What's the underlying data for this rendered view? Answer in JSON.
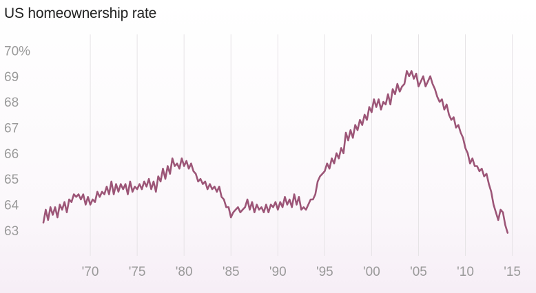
{
  "chart_data": {
    "type": "line",
    "title": "US homeownership rate",
    "xlabel": "",
    "ylabel": "",
    "y_ticks": [
      "70%",
      "69",
      "68",
      "67",
      "66",
      "65",
      "64",
      "63"
    ],
    "y_tick_values": [
      70,
      69,
      68,
      67,
      66,
      65,
      64,
      63
    ],
    "x_ticks": [
      "'70",
      "'75",
      "'80",
      "'85",
      "'90",
      "'95",
      "'00",
      "'05",
      "'10",
      "'15"
    ],
    "x_tick_values": [
      1970,
      1975,
      1980,
      1985,
      1990,
      1995,
      2000,
      2005,
      2010,
      2015
    ],
    "xlim": [
      1965,
      2016.5
    ],
    "ylim": [
      62.7,
      70.2
    ],
    "grid": "vertical",
    "series": [
      {
        "color": "#9c5577",
        "points": [
          [
            1965.0,
            63.3
          ],
          [
            1965.25,
            63.8
          ],
          [
            1965.5,
            63.4
          ],
          [
            1965.75,
            63.9
          ],
          [
            1966.0,
            63.6
          ],
          [
            1966.25,
            63.9
          ],
          [
            1966.5,
            63.5
          ],
          [
            1966.75,
            64.0
          ],
          [
            1967.0,
            63.8
          ],
          [
            1967.25,
            64.1
          ],
          [
            1967.5,
            63.7
          ],
          [
            1967.75,
            64.2
          ],
          [
            1968.0,
            64.1
          ],
          [
            1968.25,
            64.4
          ],
          [
            1968.5,
            64.3
          ],
          [
            1968.75,
            64.4
          ],
          [
            1969.0,
            64.2
          ],
          [
            1969.25,
            64.4
          ],
          [
            1969.5,
            64.0
          ],
          [
            1969.75,
            64.3
          ],
          [
            1970.0,
            64.0
          ],
          [
            1970.25,
            64.2
          ],
          [
            1970.5,
            64.1
          ],
          [
            1970.75,
            64.5
          ],
          [
            1971.0,
            64.3
          ],
          [
            1971.25,
            64.5
          ],
          [
            1971.5,
            64.4
          ],
          [
            1971.75,
            64.7
          ],
          [
            1972.0,
            64.4
          ],
          [
            1972.25,
            64.9
          ],
          [
            1972.5,
            64.4
          ],
          [
            1972.75,
            64.8
          ],
          [
            1973.0,
            64.5
          ],
          [
            1973.25,
            64.8
          ],
          [
            1973.5,
            64.6
          ],
          [
            1973.75,
            64.8
          ],
          [
            1974.0,
            64.4
          ],
          [
            1974.25,
            64.9
          ],
          [
            1974.5,
            64.5
          ],
          [
            1974.75,
            64.7
          ],
          [
            1975.0,
            64.6
          ],
          [
            1975.25,
            64.8
          ],
          [
            1975.5,
            64.6
          ],
          [
            1975.75,
            64.9
          ],
          [
            1976.0,
            64.7
          ],
          [
            1976.25,
            65.0
          ],
          [
            1976.5,
            64.6
          ],
          [
            1976.75,
            64.9
          ],
          [
            1977.0,
            64.5
          ],
          [
            1977.25,
            65.1
          ],
          [
            1977.5,
            64.9
          ],
          [
            1977.75,
            65.4
          ],
          [
            1978.0,
            65.0
          ],
          [
            1978.25,
            65.5
          ],
          [
            1978.5,
            65.2
          ],
          [
            1978.75,
            65.8
          ],
          [
            1979.0,
            65.5
          ],
          [
            1979.25,
            65.6
          ],
          [
            1979.5,
            65.4
          ],
          [
            1979.75,
            65.8
          ],
          [
            1980.0,
            65.5
          ],
          [
            1980.25,
            65.7
          ],
          [
            1980.5,
            65.4
          ],
          [
            1980.75,
            65.6
          ],
          [
            1981.0,
            65.3
          ],
          [
            1981.25,
            65.2
          ],
          [
            1981.5,
            64.9
          ],
          [
            1981.75,
            65.0
          ],
          [
            1982.0,
            64.8
          ],
          [
            1982.25,
            64.9
          ],
          [
            1982.5,
            64.6
          ],
          [
            1982.75,
            64.8
          ],
          [
            1983.0,
            64.6
          ],
          [
            1983.25,
            64.7
          ],
          [
            1983.5,
            64.5
          ],
          [
            1983.75,
            64.7
          ],
          [
            1984.0,
            64.3
          ],
          [
            1984.25,
            64.2
          ],
          [
            1984.5,
            63.9
          ],
          [
            1984.75,
            63.9
          ],
          [
            1985.0,
            63.5
          ],
          [
            1985.25,
            63.7
          ],
          [
            1985.5,
            63.8
          ],
          [
            1985.75,
            63.9
          ],
          [
            1986.0,
            63.7
          ],
          [
            1986.25,
            63.8
          ],
          [
            1986.5,
            63.9
          ],
          [
            1986.75,
            64.2
          ],
          [
            1987.0,
            63.8
          ],
          [
            1987.25,
            64.1
          ],
          [
            1987.5,
            63.7
          ],
          [
            1987.75,
            64.0
          ],
          [
            1988.0,
            63.8
          ],
          [
            1988.25,
            63.9
          ],
          [
            1988.5,
            63.7
          ],
          [
            1988.75,
            64.0
          ],
          [
            1989.0,
            63.7
          ],
          [
            1989.25,
            64.0
          ],
          [
            1989.5,
            63.9
          ],
          [
            1989.75,
            64.1
          ],
          [
            1990.0,
            63.8
          ],
          [
            1990.25,
            64.1
          ],
          [
            1990.5,
            63.9
          ],
          [
            1990.75,
            64.3
          ],
          [
            1991.0,
            64.0
          ],
          [
            1991.25,
            64.2
          ],
          [
            1991.5,
            63.9
          ],
          [
            1991.75,
            64.4
          ],
          [
            1992.0,
            64.0
          ],
          [
            1992.25,
            64.3
          ],
          [
            1992.5,
            63.8
          ],
          [
            1992.75,
            63.9
          ],
          [
            1993.0,
            63.8
          ],
          [
            1993.25,
            64.0
          ],
          [
            1993.5,
            64.2
          ],
          [
            1993.75,
            64.2
          ],
          [
            1994.0,
            64.4
          ],
          [
            1994.25,
            64.9
          ],
          [
            1994.5,
            65.1
          ],
          [
            1994.75,
            65.2
          ],
          [
            1995.0,
            65.3
          ],
          [
            1995.25,
            65.6
          ],
          [
            1995.5,
            65.4
          ],
          [
            1995.75,
            65.8
          ],
          [
            1996.0,
            65.6
          ],
          [
            1996.25,
            66.0
          ],
          [
            1996.5,
            65.8
          ],
          [
            1996.75,
            66.2
          ],
          [
            1997.0,
            66.0
          ],
          [
            1997.25,
            66.8
          ],
          [
            1997.5,
            66.5
          ],
          [
            1997.75,
            66.9
          ],
          [
            1998.0,
            66.6
          ],
          [
            1998.25,
            67.1
          ],
          [
            1998.5,
            66.9
          ],
          [
            1998.75,
            67.3
          ],
          [
            1999.0,
            67.1
          ],
          [
            1999.25,
            67.5
          ],
          [
            1999.5,
            67.3
          ],
          [
            1999.75,
            67.8
          ],
          [
            2000.0,
            67.6
          ],
          [
            2000.25,
            68.1
          ],
          [
            2000.5,
            67.8
          ],
          [
            2000.75,
            68.1
          ],
          [
            2001.0,
            67.7
          ],
          [
            2001.25,
            68.0
          ],
          [
            2001.5,
            67.9
          ],
          [
            2001.75,
            68.3
          ],
          [
            2002.0,
            67.9
          ],
          [
            2002.25,
            68.5
          ],
          [
            2002.5,
            68.3
          ],
          [
            2002.75,
            68.7
          ],
          [
            2003.0,
            68.4
          ],
          [
            2003.25,
            68.6
          ],
          [
            2003.5,
            68.7
          ],
          [
            2003.75,
            69.2
          ],
          [
            2004.0,
            69.0
          ],
          [
            2004.25,
            69.2
          ],
          [
            2004.5,
            68.9
          ],
          [
            2004.75,
            69.1
          ],
          [
            2005.0,
            68.6
          ],
          [
            2005.25,
            68.8
          ],
          [
            2005.5,
            69.0
          ],
          [
            2005.75,
            68.6
          ],
          [
            2006.0,
            68.8
          ],
          [
            2006.25,
            69.0
          ],
          [
            2006.5,
            68.7
          ],
          [
            2006.75,
            68.5
          ],
          [
            2007.0,
            68.2
          ],
          [
            2007.25,
            68.0
          ],
          [
            2007.5,
            68.1
          ],
          [
            2007.75,
            67.7
          ],
          [
            2008.0,
            67.9
          ],
          [
            2008.25,
            67.5
          ],
          [
            2008.5,
            67.3
          ],
          [
            2008.75,
            67.4
          ],
          [
            2009.0,
            67.0
          ],
          [
            2009.25,
            67.1
          ],
          [
            2009.5,
            66.8
          ],
          [
            2009.75,
            66.6
          ],
          [
            2010.0,
            66.2
          ],
          [
            2010.25,
            66.0
          ],
          [
            2010.5,
            65.6
          ],
          [
            2010.75,
            65.8
          ],
          [
            2011.0,
            65.5
          ],
          [
            2011.25,
            65.5
          ],
          [
            2011.5,
            65.3
          ],
          [
            2011.75,
            65.4
          ],
          [
            2012.0,
            65.1
          ],
          [
            2012.25,
            65.2
          ],
          [
            2012.5,
            64.8
          ],
          [
            2012.75,
            64.5
          ],
          [
            2013.0,
            64.0
          ],
          [
            2013.25,
            63.7
          ],
          [
            2013.5,
            63.4
          ],
          [
            2013.75,
            63.8
          ],
          [
            2014.0,
            63.7
          ],
          [
            2014.25,
            63.2
          ],
          [
            2014.5,
            62.9
          ]
        ]
      }
    ]
  }
}
